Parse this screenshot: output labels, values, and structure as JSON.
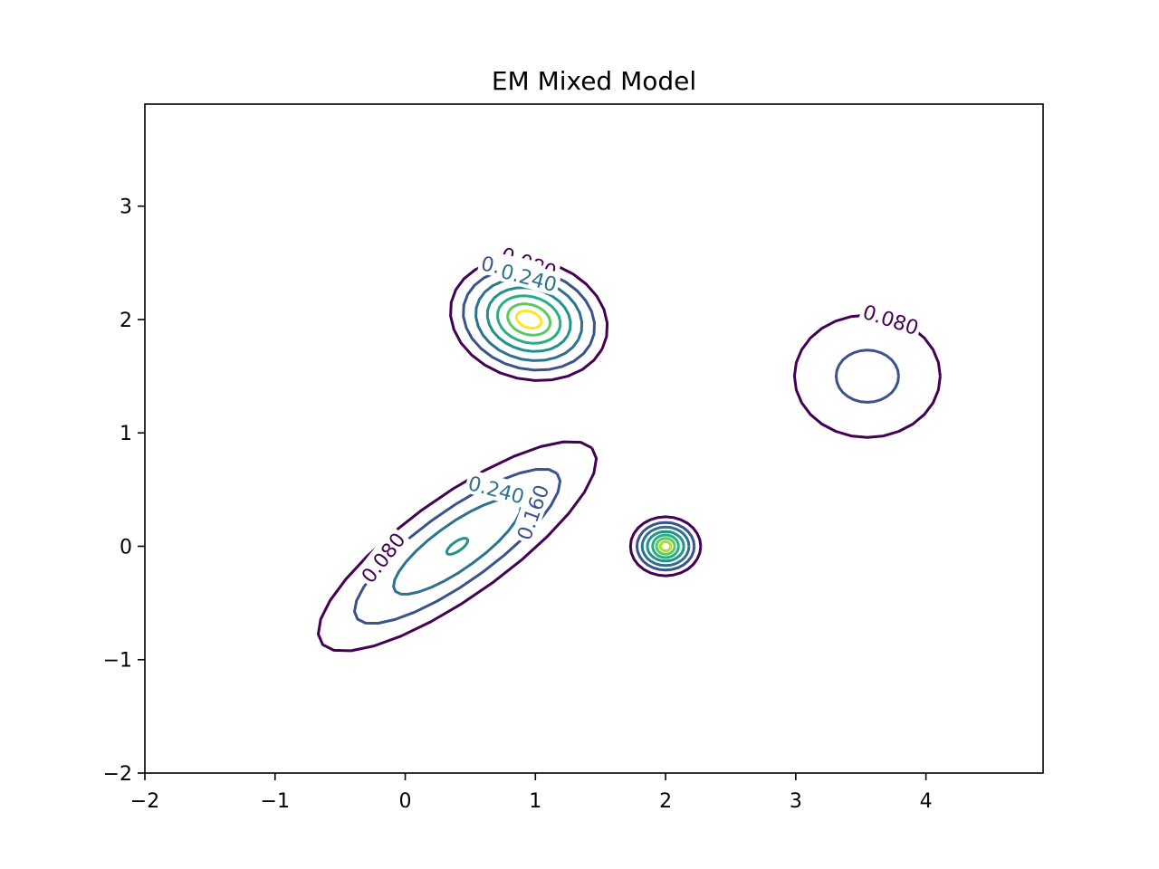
{
  "chart_data": {
    "type": "contour",
    "title": "EM Mixed Model",
    "xlabel": "",
    "ylabel": "",
    "xlim": [
      -2,
      4.9
    ],
    "ylim": [
      -2,
      3.9
    ],
    "x_ticks": [
      -2,
      -1,
      0,
      1,
      2,
      3,
      4
    ],
    "y_ticks": [
      -2,
      -1,
      0,
      1,
      2,
      3
    ],
    "x_tick_labels": [
      "−2",
      "−1",
      "0",
      "1",
      "2",
      "3",
      "4"
    ],
    "y_tick_labels": [
      "−2",
      "−1",
      "0",
      "1",
      "2",
      "3"
    ],
    "grid": false,
    "colormap": "viridis",
    "level_colors": [
      "#440154",
      "#3b528b",
      "#2c728e",
      "#21918c",
      "#28ae80",
      "#5ec962",
      "#addc30",
      "#fde725"
    ],
    "components": [
      {
        "center": [
          0.4,
          0.0
        ],
        "radii": [
          {
            "a": 1.35,
            "b": 0.42
          },
          {
            "a": 1.0,
            "b": 0.3
          },
          {
            "a": 0.62,
            "b": 0.19
          },
          {
            "a": 0.1,
            "b": 0.04
          }
        ],
        "angle_deg": 40,
        "levels": [
          0,
          1,
          2,
          3
        ]
      },
      {
        "center": [
          0.95,
          2.0
        ],
        "radii": [
          {
            "a": 0.62,
            "b": 0.52
          },
          {
            "a": 0.52,
            "b": 0.43
          },
          {
            "a": 0.42,
            "b": 0.35
          },
          {
            "a": 0.33,
            "b": 0.27
          },
          {
            "a": 0.25,
            "b": 0.2
          },
          {
            "a": 0.17,
            "b": 0.13
          },
          {
            "a": 0.1,
            "b": 0.07
          }
        ],
        "angle_deg": -25,
        "levels": [
          0,
          1,
          2,
          3,
          4,
          5,
          7
        ]
      },
      {
        "center": [
          2.0,
          0.0
        ],
        "radii": [
          {
            "a": 0.27,
            "b": 0.26
          },
          {
            "a": 0.22,
            "b": 0.21
          },
          {
            "a": 0.18,
            "b": 0.17
          },
          {
            "a": 0.14,
            "b": 0.13
          },
          {
            "a": 0.1,
            "b": 0.1
          },
          {
            "a": 0.07,
            "b": 0.07
          },
          {
            "a": 0.04,
            "b": 0.04
          }
        ],
        "angle_deg": 0,
        "levels": [
          0,
          1,
          2,
          3,
          4,
          5,
          6
        ]
      },
      {
        "center": [
          3.55,
          1.5
        ],
        "radii": [
          {
            "a": 0.56,
            "b": 0.54
          },
          {
            "a": 0.24,
            "b": 0.23
          }
        ],
        "angle_deg": 0,
        "levels": [
          0,
          1
        ]
      }
    ],
    "contour_labels": [
      {
        "text": "0.080",
        "x": 0.95,
        "y": 2.5,
        "angle": 20,
        "level": 0
      },
      {
        "text": "0.160",
        "x": 0.8,
        "y": 2.45,
        "angle": 12,
        "level": 1
      },
      {
        "text": "0.240",
        "x": 0.95,
        "y": 2.37,
        "angle": 15,
        "level": 2
      },
      {
        "text": "0.080",
        "x": 3.73,
        "y": 2.0,
        "angle": 18,
        "level": 0
      },
      {
        "text": "0.080",
        "x": -0.17,
        "y": -0.1,
        "angle": -52,
        "level": 0
      },
      {
        "text": "0.240",
        "x": 0.7,
        "y": 0.5,
        "angle": 15,
        "level": 2
      },
      {
        "text": "0.160",
        "x": 0.98,
        "y": 0.3,
        "angle": -70,
        "level": 1
      }
    ]
  }
}
